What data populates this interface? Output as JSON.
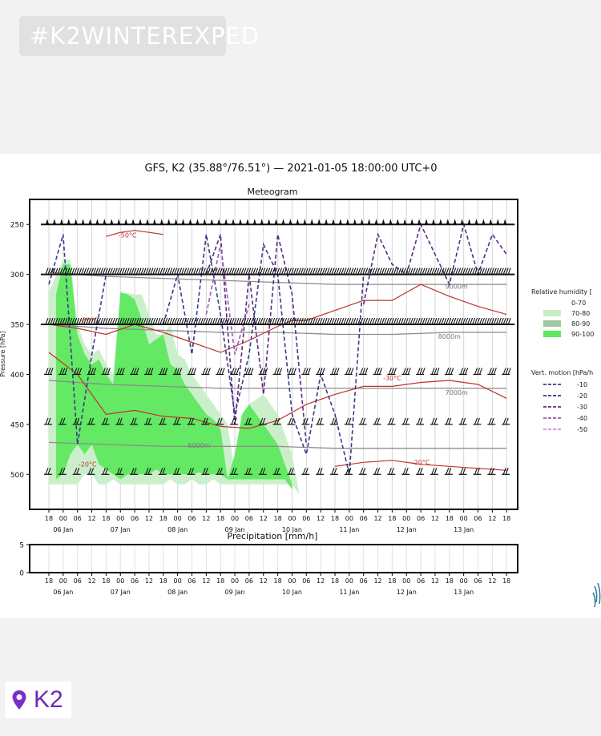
{
  "hashtag": "#K2WINTEREXPED",
  "location": {
    "label": "K2"
  },
  "chart_data": [
    {
      "type": "line",
      "suptitle": "GFS, K2 (35.88°/76.51°) — 2021-01-05 18:00:00 UTC+0",
      "title": "Meteogram",
      "ylabel": "Pressure [hPa]",
      "y_inverted": true,
      "ylim": [
        535,
        225
      ],
      "y_ticks": [
        250,
        300,
        350,
        400,
        450,
        500
      ],
      "x_ticks": [
        "18",
        "00",
        "06",
        "12",
        "18",
        "00",
        "06",
        "12",
        "18",
        "00",
        "06",
        "12",
        "18",
        "00",
        "06",
        "12",
        "18",
        "00",
        "06",
        "12",
        "18",
        "00",
        "06",
        "12",
        "18",
        "00",
        "06",
        "12",
        "18",
        "00",
        "06",
        "12",
        "18"
      ],
      "x_day_labels": [
        {
          "at": 1,
          "label": "06 Jan"
        },
        {
          "at": 5,
          "label": "07 Jan"
        },
        {
          "at": 9,
          "label": "08 Jan"
        },
        {
          "at": 13,
          "label": "09 Jan"
        },
        {
          "at": 17,
          "label": "10 Jan"
        },
        {
          "at": 21,
          "label": "11 Jan"
        },
        {
          "at": 25,
          "label": "12 Jan"
        },
        {
          "at": 29,
          "label": "13 Jan"
        }
      ],
      "wind_barb_levels": [
        250,
        300,
        350,
        400,
        450,
        500
      ],
      "legend_humidity": {
        "title": "Relative humidity [",
        "items": [
          {
            "label": "0-70",
            "color": "#ffffff"
          },
          {
            "label": "70-80",
            "color": "#c8eec8"
          },
          {
            "label": "80-90",
            "color": "#9fc99f"
          },
          {
            "label": "90-100",
            "color": "#5ee85e"
          }
        ]
      },
      "legend_motion": {
        "title": "Vert. motion [hPa/h",
        "items": [
          {
            "label": "-10",
            "color": "#3a3a8a"
          },
          {
            "label": "-20",
            "color": "#4a2a80"
          },
          {
            "label": "-30",
            "color": "#5a2a80"
          },
          {
            "label": "-40",
            "color": "#9a5ab0"
          },
          {
            "label": "-50",
            "color": "#d88ad8"
          }
        ]
      },
      "temperature_labels": [
        {
          "label": "-50°C",
          "x": 5.5,
          "p": 263
        },
        {
          "label": "-30°C",
          "x": 2.8,
          "p": 348
        },
        {
          "label": "-30°C",
          "x": 24.0,
          "p": 406
        },
        {
          "label": "-20°C",
          "x": 2.7,
          "p": 492
        },
        {
          "label": "-20°C",
          "x": 26.0,
          "p": 490
        }
      ],
      "height_labels": [
        {
          "label": "9000m",
          "x": 28.5,
          "p": 312
        },
        {
          "label": "8000m",
          "x": 28.0,
          "p": 362
        },
        {
          "label": "7000m",
          "x": 28.5,
          "p": 418
        },
        {
          "label": "6000m",
          "x": 10.5,
          "p": 471
        }
      ],
      "temperature_lines": [
        {
          "x": [
            0,
            2,
            4,
            6,
            8,
            10,
            12,
            14,
            16,
            18,
            20,
            22,
            24,
            26,
            28,
            30,
            32
          ],
          "p": [
            378,
            400,
            440,
            436,
            442,
            444,
            452,
            454,
            446,
            430,
            420,
            412,
            412,
            408,
            406,
            410,
            424
          ]
        },
        {
          "x": [
            0,
            2,
            4,
            6,
            8,
            10,
            12,
            14,
            16,
            17,
            18,
            20,
            22,
            24,
            26,
            28,
            30,
            32
          ],
          "p": [
            350,
            354,
            360,
            350,
            358,
            368,
            378,
            366,
            352,
            346,
            346,
            336,
            326,
            326,
            310,
            322,
            332,
            340
          ]
        },
        {
          "x": [
            4,
            5,
            6,
            7,
            8
          ],
          "p": [
            262,
            258,
            256,
            258,
            260
          ]
        },
        {
          "x": [
            20,
            22,
            24,
            26,
            28,
            30,
            32
          ],
          "p": [
            492,
            488,
            486,
            490,
            492,
            494,
            496
          ]
        }
      ],
      "height_lines": [
        {
          "x": [
            0,
            4,
            8,
            12,
            16,
            20,
            24,
            28,
            32
          ],
          "p": [
            298,
            302,
            304,
            306,
            308,
            310,
            310,
            310,
            310
          ]
        },
        {
          "x": [
            0,
            4,
            8,
            12,
            16,
            20,
            24,
            28,
            32
          ],
          "p": [
            350,
            354,
            356,
            358,
            358,
            360,
            360,
            358,
            358
          ]
        },
        {
          "x": [
            0,
            4,
            8,
            12,
            16,
            20,
            24,
            28,
            32
          ],
          "p": [
            406,
            410,
            412,
            414,
            414,
            414,
            414,
            414,
            414
          ]
        },
        {
          "x": [
            0,
            4,
            8,
            12,
            16,
            20,
            24,
            28,
            32
          ],
          "p": [
            468,
            470,
            472,
            472,
            472,
            474,
            474,
            474,
            474
          ]
        }
      ],
      "humidity_areas": [
        {
          "class": "70-80",
          "x": [
            0,
            1,
            1.5,
            2,
            2.5,
            3,
            3.5,
            4,
            4.5,
            5,
            6,
            6.5,
            7,
            7.5,
            8,
            8.5,
            9,
            9.5,
            10,
            10.5,
            11,
            11.5,
            12,
            12.5,
            13,
            13.5,
            14,
            15,
            16,
            16.5,
            17,
            17.5
          ],
          "top": [
            318,
            285,
            285,
            350,
            370,
            380,
            375,
            390,
            400,
            318,
            320,
            320,
            340,
            360,
            360,
            350,
            380,
            385,
            400,
            410,
            420,
            430,
            440,
            450,
            500,
            470,
            430,
            420,
            440,
            460,
            480,
            520
          ],
          "bottom": [
            510,
            510,
            510,
            510,
            500,
            500,
            510,
            510,
            505,
            510,
            510,
            510,
            510,
            510,
            510,
            505,
            510,
            510,
            505,
            510,
            510,
            505,
            510,
            510,
            510,
            510,
            510,
            510,
            510,
            510,
            510,
            520
          ]
        },
        {
          "class": "90-100",
          "x": [
            0.5,
            1,
            1.5,
            2,
            2.5,
            3,
            3.5,
            4,
            4.5,
            5,
            5.5,
            6,
            6.5,
            7,
            7.5,
            8,
            8.5,
            9,
            9.5,
            10,
            10.5,
            11,
            11.5,
            12,
            12.5,
            13,
            13.5,
            14,
            15,
            16,
            16.5,
            17
          ],
          "top": [
            320,
            290,
            290,
            360,
            380,
            390,
            385,
            400,
            410,
            318,
            320,
            325,
            345,
            370,
            365,
            360,
            390,
            395,
            410,
            420,
            430,
            440,
            445,
            455,
            505,
            480,
            440,
            430,
            450,
            470,
            490,
            510
          ],
          "bottom": [
            505,
            500,
            480,
            470,
            480,
            470,
            490,
            495,
            500,
            505,
            500,
            500,
            500,
            500,
            495,
            500,
            500,
            500,
            500,
            500,
            498,
            500,
            500,
            500,
            505,
            505,
            505,
            505,
            505,
            505,
            505,
            515
          ]
        }
      ],
      "vertical_motion_lines": [
        {
          "level": "-10",
          "x": [
            0,
            1,
            2,
            3,
            4
          ],
          "p": [
            310,
            260,
            470,
            380,
            300
          ]
        },
        {
          "level": "-10",
          "x": [
            8,
            9,
            10,
            11,
            12,
            13,
            14,
            15,
            16,
            17,
            18,
            19,
            20,
            21,
            22
          ],
          "p": [
            350,
            300,
            380,
            260,
            340,
            440,
            380,
            270,
            300,
            440,
            480,
            400,
            440,
            500,
            300
          ]
        },
        {
          "level": "-30",
          "x": [
            11,
            12,
            13,
            14,
            15,
            16,
            17,
            18
          ],
          "p": [
            300,
            260,
            450,
            300,
            420,
            260,
            320,
            470
          ]
        },
        {
          "level": "-30",
          "x": [
            22,
            23,
            24,
            25,
            26,
            27,
            28,
            29,
            30,
            31,
            32
          ],
          "p": [
            330,
            260,
            290,
            300,
            250,
            280,
            310,
            250,
            300,
            260,
            280
          ]
        },
        {
          "level": "-40",
          "x": [
            11,
            12,
            13,
            14
          ],
          "p": [
            340,
            270,
            380,
            330
          ]
        }
      ]
    },
    {
      "type": "bar",
      "title": "Precipitation [mm/h]",
      "ylim": [
        0,
        5
      ],
      "y_ticks": [
        0,
        5
      ],
      "categories": [
        "18",
        "00",
        "06",
        "12",
        "18",
        "00",
        "06",
        "12",
        "18",
        "00",
        "06",
        "12",
        "18",
        "00",
        "06",
        "12",
        "18",
        "00",
        "06",
        "12",
        "18",
        "00",
        "06",
        "12",
        "18",
        "00",
        "06",
        "12",
        "18",
        "00",
        "06",
        "12",
        "18"
      ],
      "values": [
        0,
        0,
        0,
        0,
        0,
        0,
        0,
        0,
        0,
        0,
        0,
        0,
        0,
        0,
        0,
        0,
        0,
        0,
        0,
        0,
        0,
        0,
        0,
        0,
        0,
        0,
        0,
        0,
        0,
        0,
        0,
        0,
        0
      ],
      "x_day_labels": [
        {
          "at": 1,
          "label": "06 Jan"
        },
        {
          "at": 5,
          "label": "07 Jan"
        },
        {
          "at": 9,
          "label": "08 Jan"
        },
        {
          "at": 13,
          "label": "09 Jan"
        },
        {
          "at": 17,
          "label": "10 Jan"
        },
        {
          "at": 21,
          "label": "11 Jan"
        },
        {
          "at": 25,
          "label": "12 Jan"
        },
        {
          "at": 29,
          "label": "13 Jan"
        }
      ]
    }
  ]
}
